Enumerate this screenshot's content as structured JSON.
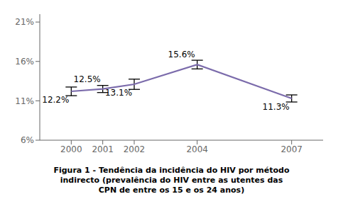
{
  "chart_data": {
    "type": "line",
    "title": "Figura 1 - Tendência da incidência do HIV por método\nindirecto (prevalência do HIV entre as utentes das\nCPN de entre os 15 e os 24 anos)",
    "x": [
      2000,
      2001,
      2002,
      2004,
      2007
    ],
    "values": [
      12.2,
      12.5,
      13.1,
      15.6,
      11.3
    ],
    "yerr": [
      0.55,
      0.45,
      0.65,
      0.55,
      0.45
    ],
    "value_labels": [
      "12.2%",
      "12.5%",
      "13.1%",
      "15.6%",
      "11.3%"
    ],
    "data_labels": true,
    "color": "#7b6bab",
    "marker": "none",
    "line_style": "solid",
    "xlim": [
      1999.0,
      2008.0
    ],
    "xticks": [
      2000,
      2001,
      2002,
      2004,
      2007
    ],
    "ylim": [
      6,
      22
    ],
    "yticks": [
      {
        "value": 6,
        "label": "6%"
      },
      {
        "value": 11,
        "label": "11%"
      },
      {
        "value": 16,
        "label": "16%"
      },
      {
        "value": 21,
        "label": "21%"
      }
    ],
    "grid": false
  }
}
